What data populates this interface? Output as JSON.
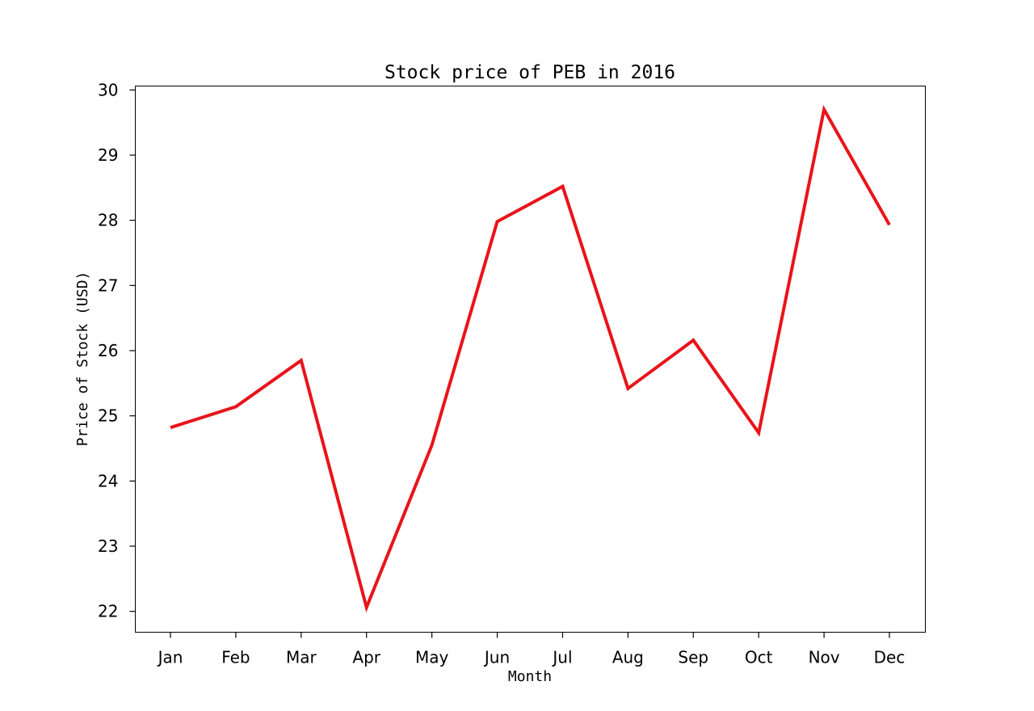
{
  "chart_data": {
    "type": "line",
    "title": "Stock price of PEB in 2016",
    "xlabel": "Month",
    "ylabel": "Price of Stock (USD)",
    "categories": [
      "Jan",
      "Feb",
      "Mar",
      "Apr",
      "May",
      "Jun",
      "Jul",
      "Aug",
      "Sep",
      "Oct",
      "Nov",
      "Dec"
    ],
    "series": [
      {
        "values": [
          24.82,
          25.14,
          25.85,
          22.06,
          24.55,
          27.98,
          28.52,
          25.42,
          26.16,
          24.74,
          29.7,
          27.93
        ],
        "color": "#e8141b"
      }
    ],
    "yticks": [
      22,
      23,
      24,
      25,
      26,
      27,
      28,
      29,
      30
    ],
    "ylim": [
      21.68,
      30.06
    ],
    "grid": false,
    "legend": "none"
  }
}
